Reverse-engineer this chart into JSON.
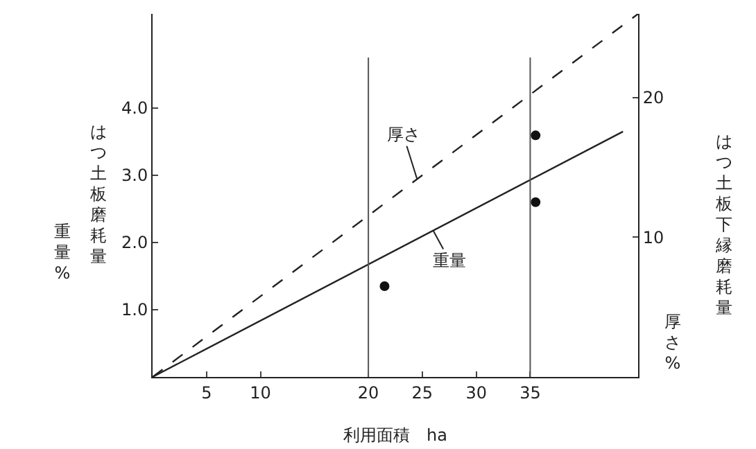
{
  "chart_data": {
    "type": "line",
    "xlabel": "利用面積　ha",
    "ylabel": "はつ土板磨耗量",
    "y2label": "はつ土板下縁磨耗量",
    "xlim": [
      0,
      45
    ],
    "xticks": [
      5,
      10,
      20,
      25,
      30,
      35
    ],
    "ylim": [
      0,
      5.4
    ],
    "yticks": [
      {
        "value": 1,
        "label": "1.0"
      },
      {
        "value": 2,
        "label": "2.0"
      },
      {
        "value": 3,
        "label": "3.0"
      },
      {
        "value": 4,
        "label": "4.0"
      }
    ],
    "y2lim": [
      0,
      26
    ],
    "y2ticks": [
      10,
      20
    ],
    "series": [
      {
        "color": "#222222",
        "axis": "y2",
        "line_style": "dashed",
        "x": [
          0,
          45
        ],
        "values": [
          0,
          26
        ]
      },
      {
        "color": "#222222",
        "x": [
          0,
          43.6
        ],
        "values": [
          0,
          3.65
        ]
      },
      {
        "type": "scatter",
        "color": "#111111",
        "marker": "circle",
        "x": [
          21.5,
          35.5
        ],
        "values": [
          1.35,
          2.6
        ]
      },
      {
        "type": "scatter",
        "color": "#111111",
        "marker": "circle",
        "axis": "y2",
        "x": [
          35.5
        ],
        "values": [
          17.3
        ]
      }
    ],
    "ref_lines": [
      {
        "axis": "x",
        "value": 20,
        "color": "#555555"
      },
      {
        "axis": "x",
        "value": 35,
        "color": "#555555"
      }
    ],
    "annotations": [
      {
        "text": "厚さ",
        "x": 24.5,
        "y": 2.95
      },
      {
        "text": "重量",
        "x": 26,
        "y": 2.18
      },
      "重量%",
      "厚さ%"
    ],
    "grid": false
  }
}
